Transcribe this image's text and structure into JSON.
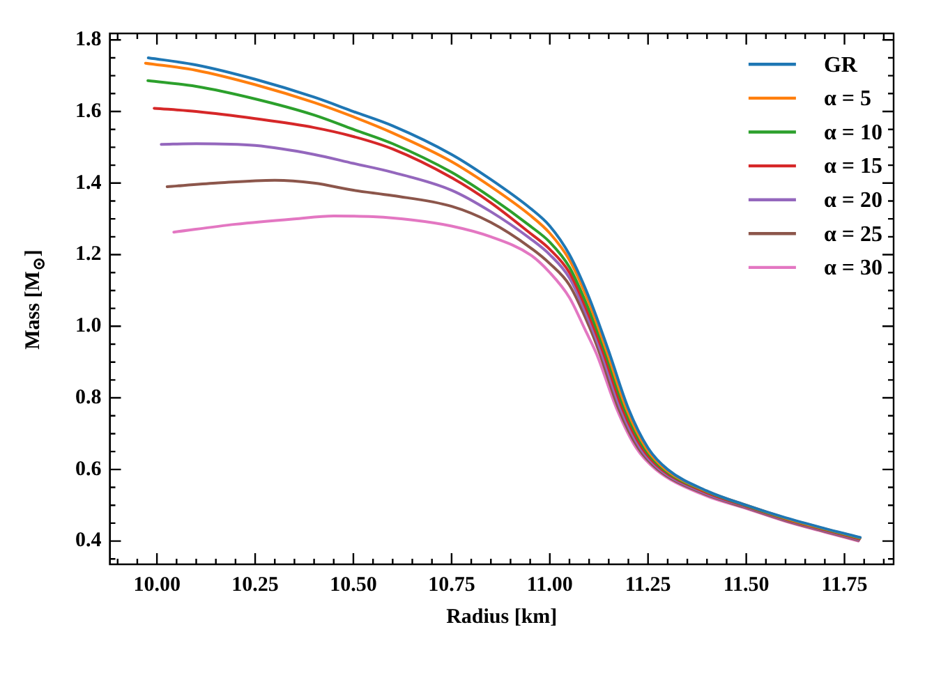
{
  "chart_data": {
    "type": "line",
    "xlabel": "Radius [km]",
    "ylabel": "Mass [M$_{⊙}$]",
    "xlim": [
      9.88,
      11.875
    ],
    "ylim": [
      0.335,
      1.818
    ],
    "xticks": [
      {
        "value": 9.9,
        "label": null
      },
      {
        "value": 9.95,
        "label": null
      },
      {
        "value": 10,
        "label": "10.00"
      },
      {
        "value": 10.05,
        "label": null
      },
      {
        "value": 10.1,
        "label": null
      },
      {
        "value": 10.15,
        "label": null
      },
      {
        "value": 10.2,
        "label": null
      },
      {
        "value": 10.25,
        "label": "10.25"
      },
      {
        "value": 10.3,
        "label": null
      },
      {
        "value": 10.35,
        "label": null
      },
      {
        "value": 10.4,
        "label": null
      },
      {
        "value": 10.45,
        "label": null
      },
      {
        "value": 10.5,
        "label": "10.50"
      },
      {
        "value": 10.55,
        "label": null
      },
      {
        "value": 10.6,
        "label": null
      },
      {
        "value": 10.65,
        "label": null
      },
      {
        "value": 10.7,
        "label": null
      },
      {
        "value": 10.75,
        "label": "10.75"
      },
      {
        "value": 10.8,
        "label": null
      },
      {
        "value": 10.85,
        "label": null
      },
      {
        "value": 10.9,
        "label": null
      },
      {
        "value": 10.95,
        "label": null
      },
      {
        "value": 11,
        "label": "11.00"
      },
      {
        "value": 11.05,
        "label": null
      },
      {
        "value": 11.1,
        "label": null
      },
      {
        "value": 11.15,
        "label": null
      },
      {
        "value": 11.2,
        "label": null
      },
      {
        "value": 11.25,
        "label": "11.25"
      },
      {
        "value": 11.3,
        "label": null
      },
      {
        "value": 11.35,
        "label": null
      },
      {
        "value": 11.4,
        "label": null
      },
      {
        "value": 11.45,
        "label": null
      },
      {
        "value": 11.5,
        "label": "11.50"
      },
      {
        "value": 11.55,
        "label": null
      },
      {
        "value": 11.6,
        "label": null
      },
      {
        "value": 11.65,
        "label": null
      },
      {
        "value": 11.7,
        "label": null
      },
      {
        "value": 11.75,
        "label": "11.75"
      },
      {
        "value": 11.8,
        "label": null
      },
      {
        "value": 11.85,
        "label": null
      }
    ],
    "yticks": [
      {
        "value": 0.35,
        "label": null
      },
      0.4,
      {
        "value": 0.45,
        "label": null
      },
      {
        "value": 0.5,
        "label": null
      },
      {
        "value": 0.55,
        "label": null
      },
      0.6,
      {
        "value": 0.65,
        "label": null
      },
      {
        "value": 0.7,
        "label": null
      },
      {
        "value": 0.75,
        "label": null
      },
      0.8,
      {
        "value": 0.85,
        "label": null
      },
      {
        "value": 0.9,
        "label": null
      },
      {
        "value": 0.95,
        "label": null
      },
      {
        "value": 1,
        "label": "1.0"
      },
      {
        "value": 1.05,
        "label": null
      },
      {
        "value": 1.1,
        "label": null
      },
      {
        "value": 1.15,
        "label": null
      },
      1.2,
      {
        "value": 1.25,
        "label": null
      },
      {
        "value": 1.3,
        "label": null
      },
      {
        "value": 1.35,
        "label": null
      },
      1.4,
      {
        "value": 1.45,
        "label": null
      },
      {
        "value": 1.5,
        "label": null
      },
      {
        "value": 1.55,
        "label": null
      },
      1.6,
      {
        "value": 1.65,
        "label": null
      },
      {
        "value": 1.7,
        "label": null
      },
      {
        "value": 1.75,
        "label": null
      },
      1.8
    ],
    "grid": false,
    "legend": "top right",
    "marker": "none",
    "line_style": "solid",
    "series": [
      {
        "name": "GR",
        "color": "#1f77b4",
        "x": [
          9.978,
          10.1,
          10.25,
          10.4,
          10.5,
          10.6,
          10.75,
          10.85,
          10.95,
          11.0,
          11.05,
          11.1,
          11.15,
          11.2,
          11.25,
          11.3,
          11.4,
          11.5,
          11.6,
          11.7,
          11.79
        ],
        "values": [
          1.75,
          1.73,
          1.69,
          1.64,
          1.6,
          1.56,
          1.48,
          1.41,
          1.33,
          1.28,
          1.2,
          1.08,
          0.93,
          0.77,
          0.66,
          0.6,
          0.54,
          0.5,
          0.465,
          0.435,
          0.41
        ]
      },
      {
        "name": "α = 5",
        "color": "#ff7f0e",
        "x": [
          9.971,
          10.1,
          10.25,
          10.4,
          10.5,
          10.6,
          10.75,
          10.85,
          10.95,
          11.0,
          11.05,
          11.1,
          11.145,
          11.195,
          11.245,
          11.295,
          11.398,
          11.5,
          11.6,
          11.7,
          11.79
        ],
        "values": [
          1.735,
          1.715,
          1.675,
          1.625,
          1.585,
          1.54,
          1.46,
          1.39,
          1.31,
          1.26,
          1.185,
          1.065,
          0.93,
          0.77,
          0.66,
          0.6,
          0.54,
          0.5,
          0.464,
          0.434,
          0.409
        ]
      },
      {
        "name": "α = 10",
        "color": "#2ca02c",
        "x": [
          9.977,
          10.1,
          10.25,
          10.4,
          10.5,
          10.6,
          10.75,
          10.85,
          10.95,
          11.0,
          11.05,
          11.1,
          11.14,
          11.19,
          11.24,
          11.29,
          11.395,
          11.5,
          11.6,
          11.7,
          11.789
        ],
        "values": [
          1.686,
          1.67,
          1.635,
          1.59,
          1.55,
          1.51,
          1.43,
          1.36,
          1.28,
          1.235,
          1.165,
          1.045,
          0.93,
          0.77,
          0.66,
          0.6,
          0.54,
          0.499,
          0.463,
          0.433,
          0.408
        ]
      },
      {
        "name": "α = 15",
        "color": "#d62728",
        "x": [
          9.993,
          10.1,
          10.25,
          10.4,
          10.5,
          10.6,
          10.75,
          10.85,
          10.95,
          11.0,
          11.05,
          11.1,
          11.135,
          11.185,
          11.235,
          11.285,
          11.393,
          11.5,
          11.6,
          11.7,
          11.788
        ],
        "values": [
          1.609,
          1.6,
          1.58,
          1.555,
          1.53,
          1.495,
          1.415,
          1.345,
          1.26,
          1.215,
          1.15,
          1.03,
          0.93,
          0.77,
          0.66,
          0.6,
          0.538,
          0.497,
          0.461,
          0.431,
          0.406
        ]
      },
      {
        "name": "α = 20",
        "color": "#9467bd",
        "x": [
          10.011,
          10.1,
          10.25,
          10.4,
          10.5,
          10.6,
          10.75,
          10.85,
          10.95,
          11.0,
          11.05,
          11.1,
          11.13,
          11.18,
          11.23,
          11.28,
          11.39,
          11.5,
          11.6,
          11.7,
          11.787
        ],
        "values": [
          1.508,
          1.51,
          1.505,
          1.48,
          1.455,
          1.43,
          1.38,
          1.32,
          1.245,
          1.2,
          1.135,
          1.015,
          0.93,
          0.77,
          0.66,
          0.6,
          0.536,
          0.495,
          0.459,
          0.429,
          0.404
        ]
      },
      {
        "name": "α = 25",
        "color": "#8c564b",
        "x": [
          10.026,
          10.15,
          10.3,
          10.4,
          10.5,
          10.6,
          10.75,
          10.85,
          10.95,
          11.0,
          11.05,
          11.1,
          11.125,
          11.175,
          11.225,
          11.275,
          11.388,
          11.5,
          11.6,
          11.7,
          11.786
        ],
        "values": [
          1.39,
          1.4,
          1.408,
          1.4,
          1.38,
          1.365,
          1.335,
          1.29,
          1.22,
          1.175,
          1.115,
          1.0,
          0.93,
          0.77,
          0.66,
          0.6,
          0.534,
          0.493,
          0.457,
          0.427,
          0.402
        ]
      },
      {
        "name": "α = 30",
        "color": "#e377c2",
        "x": [
          10.043,
          10.2,
          10.35,
          10.45,
          10.55,
          10.65,
          10.75,
          10.85,
          10.95,
          11.0,
          11.05,
          11.09,
          11.12,
          11.17,
          11.22,
          11.27,
          11.385,
          11.5,
          11.6,
          11.7,
          11.785
        ],
        "values": [
          1.263,
          1.285,
          1.3,
          1.308,
          1.306,
          1.297,
          1.28,
          1.25,
          1.2,
          1.15,
          1.08,
          0.99,
          0.92,
          0.77,
          0.66,
          0.6,
          0.532,
          0.491,
          0.455,
          0.425,
          0.4
        ]
      }
    ]
  }
}
